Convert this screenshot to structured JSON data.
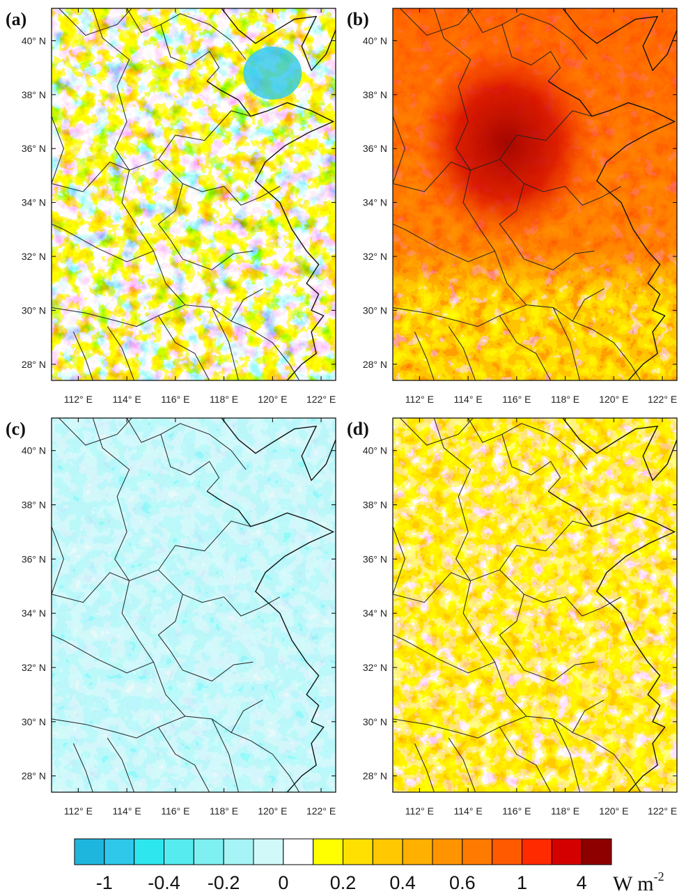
{
  "figure": {
    "panels": [
      {
        "id": "a",
        "label": "(a)",
        "field": "mixed"
      },
      {
        "id": "b",
        "label": "(b)",
        "field": "strong-positive"
      },
      {
        "id": "c",
        "label": "(c)",
        "field": "negative"
      },
      {
        "id": "d",
        "label": "(d)",
        "field": "weak-positive"
      }
    ],
    "lat_ticks": [
      "40° N",
      "38° N",
      "36° N",
      "34° N",
      "32° N",
      "30° N",
      "28° N"
    ],
    "lat_values": [
      40,
      38,
      36,
      34,
      32,
      30,
      28
    ],
    "lon_ticks": [
      "112° E",
      "114° E",
      "116° E",
      "118° E",
      "120° E",
      "122° E"
    ],
    "lon_values": [
      112,
      114,
      116,
      118,
      120,
      122
    ],
    "map_extent": {
      "lon": [
        110.9,
        122.6
      ],
      "lat": [
        27.4,
        41.2
      ]
    },
    "colorbar": {
      "colors": [
        "#1fb6dd",
        "#2fc8ea",
        "#2ee6ee",
        "#56ecef",
        "#7ef0f1",
        "#a6f4f5",
        "#d2f9fa",
        "#ffffff",
        "#ffff00",
        "#ffe000",
        "#ffc800",
        "#ffb000",
        "#ff9400",
        "#ff7a00",
        "#ff5a00",
        "#ff2a00",
        "#d40000",
        "#8e0000"
      ],
      "labels": [
        "-1",
        "-0.4",
        "-0.2",
        "0",
        "0.2",
        "0.4",
        "0.6",
        "1",
        "4"
      ],
      "unit": "W m",
      "unit_exp": "-2"
    }
  }
}
